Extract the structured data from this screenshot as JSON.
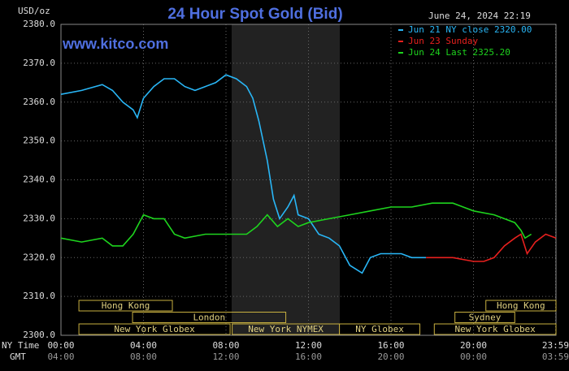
{
  "chart_data": {
    "type": "line",
    "title": "24 Hour Spot Gold (Bid)",
    "unit_label": "USD/oz",
    "timestamp": "June 24, 2024 22:19",
    "site": "www.kitco.com",
    "x_row_labels": [
      "NY Time",
      "GMT"
    ],
    "xlim": [
      0,
      24
    ],
    "xticks": [
      {
        "value": 0,
        "label": "00:00"
      },
      {
        "value": 4,
        "label": "04:00"
      },
      {
        "value": 8,
        "label": "08:00"
      },
      {
        "value": 12,
        "label": "12:00"
      },
      {
        "value": 16,
        "label": "16:00"
      },
      {
        "value": 20,
        "label": "20:00"
      },
      {
        "value": 23.98,
        "label": "23:59"
      }
    ],
    "gmt_labels": [
      "04:00",
      "08:00",
      "12:00",
      "16:00",
      "20:00",
      "00:00",
      "03:59"
    ],
    "ylim": [
      2300,
      2380
    ],
    "yticks": [
      {
        "value": 2300,
        "label": "2300.0"
      },
      {
        "value": 2310,
        "label": "2310.0"
      },
      {
        "value": 2320,
        "label": "2320.0"
      },
      {
        "value": 2330,
        "label": "2330.0"
      },
      {
        "value": 2340,
        "label": "2340.0"
      },
      {
        "value": 2350,
        "label": "2350.0"
      },
      {
        "value": 2360,
        "label": "2360.0"
      },
      {
        "value": 2370,
        "label": "2370.0"
      },
      {
        "value": 2380,
        "label": "2380.0"
      }
    ],
    "grid": true,
    "series": [
      {
        "name": "Jun 21 NY close 2320.00",
        "color": "#29b6f6",
        "x": [
          0,
          1,
          2,
          2.5,
          3,
          3.5,
          3.7,
          4,
          4.5,
          5,
          5.5,
          6,
          6.5,
          7,
          7.5,
          8,
          8.5,
          9,
          9.3,
          9.6,
          10,
          10.3,
          10.6,
          11,
          11.3,
          11.5,
          12,
          12.5,
          13,
          13.5,
          14,
          14.3,
          14.6,
          15,
          15.5,
          16,
          16.5,
          17,
          17.7
        ],
        "values": [
          2362,
          2363,
          2364.5,
          2363,
          2360,
          2358,
          2356,
          2361,
          2364,
          2366,
          2366,
          2364,
          2363,
          2364,
          2365,
          2367,
          2366,
          2364,
          2361,
          2355,
          2345,
          2335,
          2330,
          2333,
          2336,
          2331,
          2330,
          2326,
          2325,
          2323,
          2318,
          2317,
          2316,
          2320,
          2321,
          2321,
          2321,
          2320,
          2320
        ]
      },
      {
        "name": "Jun 23 Sunday",
        "color": "#e8201e",
        "x": [
          17.7,
          18,
          19,
          20,
          20.5,
          21,
          21.5,
          22,
          22.3,
          22.6,
          23,
          23.5,
          24
        ],
        "values": [
          2320,
          2320,
          2320,
          2319,
          2319,
          2320,
          2323,
          2325,
          2326,
          2321,
          2324,
          2326,
          2325
        ]
      },
      {
        "name": "Jun 24 Last 2325.20",
        "color": "#1ed41e",
        "x": [
          0,
          1,
          2,
          2.5,
          3,
          3.5,
          4,
          4.5,
          5,
          5.5,
          6,
          7,
          8,
          9,
          9.5,
          10,
          10.5,
          11,
          11.5,
          12,
          13,
          14,
          15,
          16,
          17,
          18,
          19,
          20,
          21,
          22,
          22.3,
          22.5,
          22.8
        ],
        "values": [
          2325,
          2324,
          2325,
          2323,
          2323,
          2326,
          2331,
          2330,
          2330,
          2326,
          2325,
          2326,
          2326,
          2326,
          2328,
          2331,
          2328,
          2330,
          2328,
          2329,
          2330,
          2331,
          2332,
          2333,
          2333,
          2334,
          2334,
          2332,
          2331,
          2329,
          2327,
          2325,
          2326
        ]
      }
    ],
    "sessions": [
      [
        {
          "label": "Hong Kong",
          "start": 0.87,
          "end": 5.4
        },
        {
          "label": "Hong Kong",
          "start": 20.6,
          "end": 24
        }
      ],
      [
        {
          "label": "London",
          "start": 3.47,
          "end": 10.9
        },
        {
          "label": "Sydney",
          "start": 19.1,
          "end": 22
        }
      ],
      [
        {
          "label": "New York Globex",
          "start": 0.87,
          "end": 8.2
        },
        {
          "label": "New York NYMEX",
          "start": 8.3,
          "end": 13.5
        },
        {
          "label": "NY Globex",
          "start": 13.5,
          "end": 17.4
        },
        {
          "label": "New York Globex",
          "start": 18.1,
          "end": 24
        }
      ]
    ]
  }
}
